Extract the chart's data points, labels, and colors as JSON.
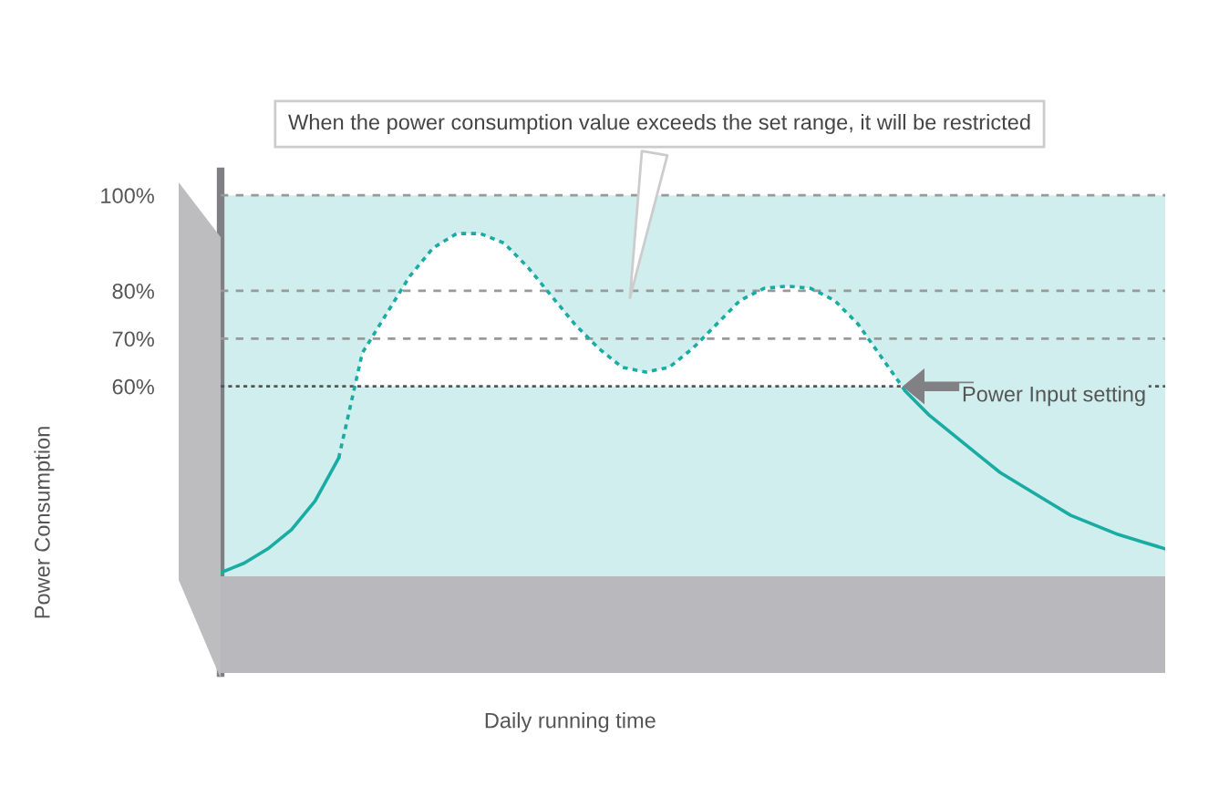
{
  "chart_data": {
    "type": "line",
    "ylabel": "Power Consumption",
    "xlabel": "Daily running time",
    "annotations": [
      "When the power consumption value exceeds the set range, it will be restricted"
    ],
    "categories": [
      null,
      null,
      null,
      null,
      null,
      null,
      null,
      null,
      null,
      null,
      null,
      null,
      null,
      null,
      null,
      null,
      null,
      null,
      null,
      null,
      null,
      null,
      null,
      null,
      null,
      null,
      null,
      null,
      null,
      null,
      null,
      null,
      null,
      null,
      null,
      null,
      null,
      null,
      null,
      null,
      null
    ],
    "series": [
      {
        "color": "#1aaba3",
        "line_style": "solid",
        "values": [
          21,
          23,
          26,
          30,
          36,
          45,
          null,
          null,
          null,
          null,
          null,
          null,
          null,
          null,
          null,
          null,
          null,
          null,
          null,
          null,
          null,
          null,
          null,
          null,
          null,
          null,
          null,
          null,
          null,
          null,
          null,
          null,
          null,
          null,
          null,
          null,
          null,
          null,
          null,
          null,
          null
        ]
      },
      {
        "color": "#1aaba3",
        "line_style": "dotted",
        "values": [
          null,
          null,
          null,
          null,
          null,
          45,
          67,
          75,
          83,
          89,
          92,
          92,
          90,
          85,
          79,
          73,
          68,
          64,
          63,
          64,
          68,
          73,
          78,
          80.5,
          81,
          80.5,
          78,
          73,
          66,
          59,
          null,
          null,
          null,
          null,
          null,
          null,
          null,
          null,
          null,
          null,
          null
        ]
      },
      {
        "color": "#1aaba3",
        "line_style": "solid",
        "values": [
          null,
          null,
          null,
          null,
          null,
          null,
          null,
          null,
          null,
          null,
          null,
          null,
          null,
          null,
          null,
          null,
          null,
          null,
          null,
          null,
          null,
          null,
          null,
          null,
          null,
          null,
          null,
          null,
          null,
          59,
          54,
          50,
          46,
          42,
          39,
          36,
          33,
          31,
          29,
          27.5,
          26
        ]
      }
    ],
    "ylim": [
      0,
      105
    ],
    "yticks": [
      {
        "value": 60,
        "label": "60%"
      },
      {
        "value": 70,
        "label": "70%"
      },
      {
        "value": 80,
        "label": "80%"
      },
      {
        "value": 100,
        "label": "100%"
      }
    ],
    "ref_lines": [
      {
        "axis": "y",
        "value": 60,
        "label": "Power Input setting",
        "color": "#555555",
        "line_style": "dotted"
      },
      {
        "axis": "y",
        "value": 70,
        "color": "#999999",
        "line_style": "dashed"
      },
      {
        "axis": "y",
        "value": 80,
        "color": "#999999",
        "line_style": "dashed"
      },
      {
        "axis": "y",
        "value": 100,
        "color": "#999999",
        "line_style": "dashed"
      }
    ],
    "bands": [
      {
        "axis": "y",
        "from": 20,
        "to": 100,
        "color": "#cfeeed"
      }
    ],
    "grid": false,
    "marker": "none"
  }
}
